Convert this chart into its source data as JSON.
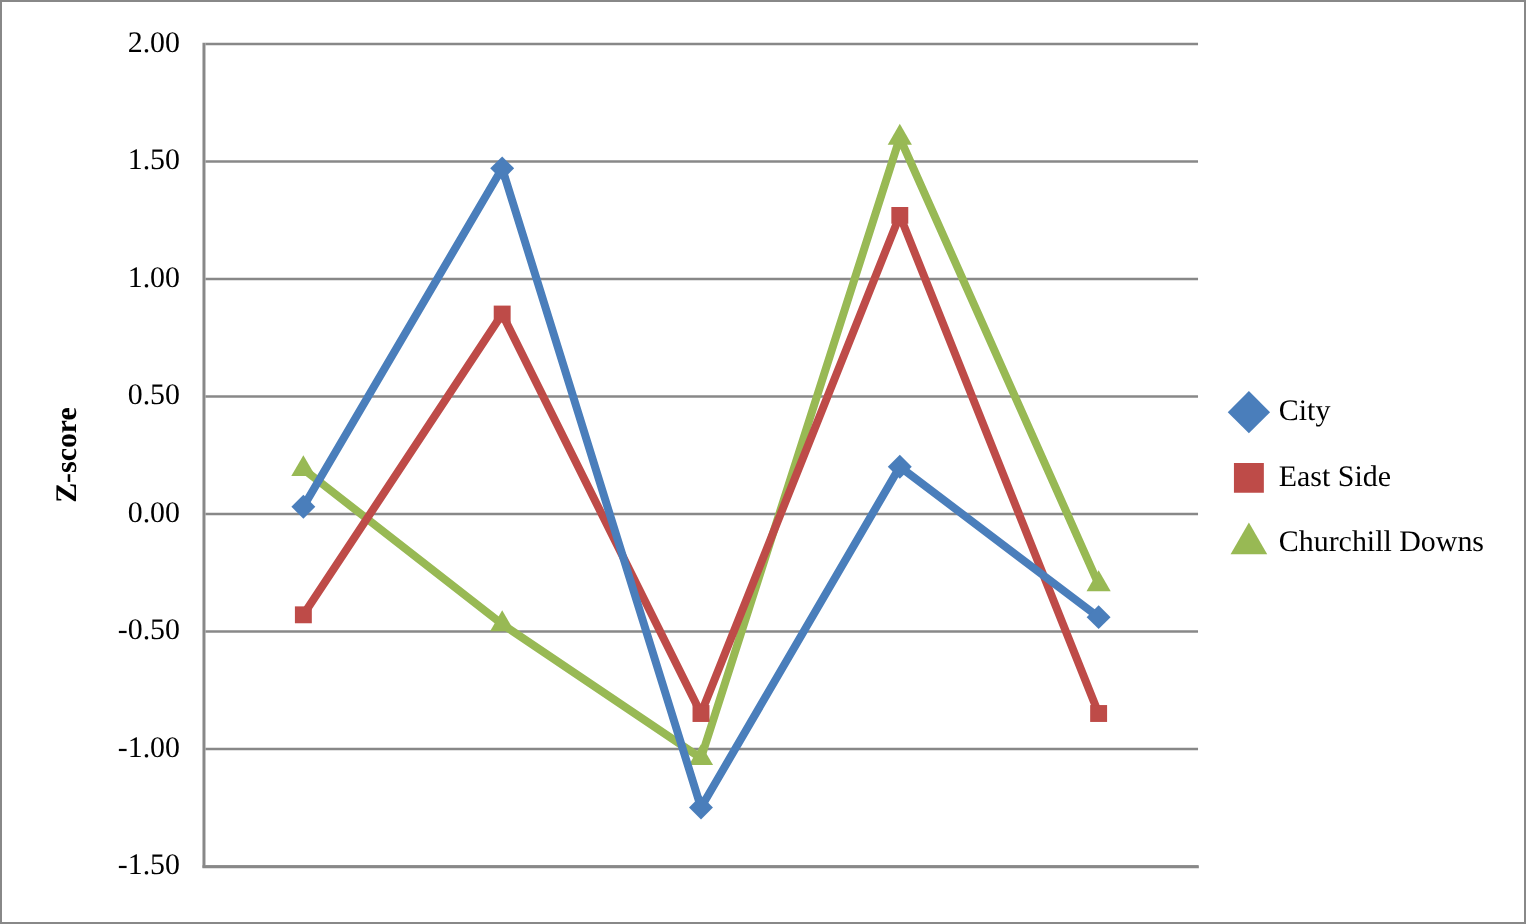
{
  "chart_data": {
    "type": "line",
    "ylabel": "Z-score",
    "categories": [
      null,
      null,
      null,
      null,
      null
    ],
    "series": [
      {
        "name": "City",
        "color": "#4a7ebb",
        "marker": "diamond",
        "values": [
          0.03,
          1.47,
          -1.25,
          0.2,
          -0.44
        ]
      },
      {
        "name": "East Side",
        "color": "#be4b48",
        "marker": "square",
        "values": [
          -0.43,
          0.85,
          -0.85,
          1.27,
          -0.85
        ]
      },
      {
        "name": "Churchill Downs",
        "color": "#98b954",
        "marker": "triangle",
        "values": [
          0.19,
          -0.47,
          -1.04,
          1.6,
          -0.3
        ]
      }
    ],
    "ylim": [
      -1.5,
      2
    ],
    "yticks": [
      {
        "value": -1.5,
        "label": "-1.50"
      },
      {
        "value": -1,
        "label": "-1.00"
      },
      {
        "value": -0.5,
        "label": "-0.50"
      },
      {
        "value": 0,
        "label": "0.00"
      },
      {
        "value": 0.5,
        "label": "0.50"
      },
      {
        "value": 1,
        "label": "1.00"
      },
      {
        "value": 1.5,
        "label": "1.50"
      },
      {
        "value": 2,
        "label": "2.00"
      }
    ],
    "grid": "y",
    "legend": "right",
    "line_style": "solid"
  }
}
